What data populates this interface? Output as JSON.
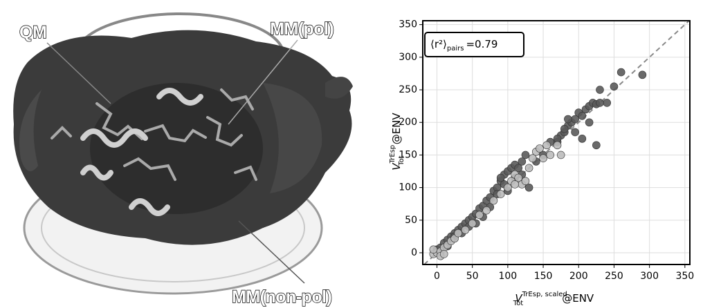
{
  "illustration": {
    "labels": [
      "QM",
      "MM(pol)",
      "MM(non-pol)"
    ]
  },
  "chart_data": {
    "type": "scatter",
    "xlim": [
      -20,
      357
    ],
    "ylim": [
      -18,
      356
    ],
    "xticks": [
      0,
      50,
      100,
      150,
      200,
      250,
      300,
      350
    ],
    "yticks": [
      0,
      50,
      100,
      150,
      200,
      250,
      300,
      350
    ],
    "grid": true,
    "x_label": {
      "symbol": "V",
      "sup": "TrEsp, scaled",
      "sub": "Tot",
      "suffix": "@ENV"
    },
    "y_label": {
      "symbol": "V",
      "sup": "TrEsp",
      "sub": "Tot",
      "suffix": "@ENV"
    },
    "annotation": {
      "symbol": "⟨r²⟩",
      "sub": "pairs",
      "text": "=0.79"
    },
    "series": [
      {
        "color": "#5a5a5a",
        "x": [
          0,
          5,
          10,
          15,
          20,
          25,
          30,
          35,
          40,
          45,
          50,
          55,
          60,
          65,
          70,
          75,
          80,
          85,
          90,
          95,
          100,
          105,
          110,
          115,
          120,
          125,
          170,
          175,
          180,
          185,
          190,
          195,
          200,
          205,
          210,
          215,
          220,
          225,
          230,
          250,
          260,
          290,
          240,
          225,
          205,
          195,
          180,
          170,
          160,
          130,
          120,
          110,
          95,
          85,
          75,
          65,
          55,
          45,
          35,
          25,
          15,
          100,
          90,
          140,
          150,
          215,
          230,
          185
        ],
        "y": [
          5,
          8,
          15,
          20,
          25,
          30,
          35,
          40,
          45,
          50,
          55,
          60,
          68,
          72,
          80,
          85,
          95,
          100,
          110,
          120,
          125,
          130,
          135,
          130,
          140,
          150,
          170,
          180,
          185,
          195,
          200,
          205,
          215,
          210,
          220,
          225,
          230,
          228,
          250,
          255,
          277,
          273,
          230,
          165,
          175,
          185,
          190,
          175,
          170,
          100,
          120,
          115,
          105,
          90,
          70,
          55,
          45,
          40,
          30,
          25,
          10,
          95,
          115,
          140,
          150,
          200,
          230,
          205
        ]
      },
      {
        "color": "#bdbdbd",
        "x": [
          -5,
          0,
          5,
          10,
          15,
          20,
          25,
          30,
          40,
          50,
          60,
          70,
          80,
          90,
          100,
          105,
          110,
          115,
          120,
          130,
          140,
          145,
          150,
          155,
          160,
          170,
          175,
          -5,
          5,
          10,
          110,
          125,
          135
        ],
        "y": [
          -2,
          0,
          2,
          8,
          12,
          18,
          22,
          30,
          35,
          45,
          58,
          65,
          80,
          90,
          100,
          110,
          120,
          115,
          105,
          130,
          155,
          160,
          145,
          165,
          150,
          165,
          150,
          5,
          -5,
          -2,
          105,
          110,
          145
        ]
      }
    ]
  }
}
